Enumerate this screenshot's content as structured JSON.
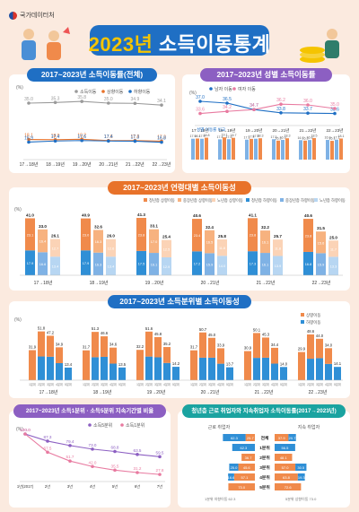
{
  "header": {
    "agency": "국가데이터처",
    "title_year": "2023년",
    "title_main": " 소득이동통계"
  },
  "chart_data": [
    {
      "type": "line",
      "title": "2017~2023년 소득이동률(전체)",
      "ylabel": "(%)",
      "categories": [
        "17→18년",
        "18→19년",
        "19→20년",
        "20→21년",
        "21→22년",
        "22→23년"
      ],
      "series": [
        {
          "name": "소득이동",
          "values": [
            35.0,
            35.3,
            35.8,
            35.0,
            34.9,
            34.1
          ]
        },
        {
          "name": "상향이동",
          "values": [
            18.1,
            18.0,
            18.2,
            17.6,
            17.6,
            17.3
          ]
        },
        {
          "name": "하향이동",
          "values": [
            16.9,
            17.4,
            17.6,
            17.4,
            17.3,
            16.8
          ]
        }
      ]
    },
    {
      "type": "line",
      "title": "2017~2023년 성별 소득이동률",
      "ylabel": "(%)",
      "categories": [
        "17→18년",
        "18→19년",
        "19→20년",
        "20→21년",
        "21→22년",
        "22→23년"
      ],
      "series": [
        {
          "name": "남자 이동",
          "values": [
            37.0,
            36.5,
            34.7,
            33.8,
            33.7,
            33.6
          ]
        },
        {
          "name": "여자 이동",
          "values": [
            33.6,
            34.2,
            34.7,
            36.2,
            36.0,
            35.0
          ]
        }
      ],
      "bars": {
        "annotation": "성별 이동률 비교",
        "male": [
          [
            17.9,
            18.1
          ],
          [
            17.4,
            19.1
          ],
          [
            17.1,
            17.8
          ],
          [
            17.5,
            16.3
          ],
          [
            16.7,
            16.3
          ],
          [
            16.9,
            16.1
          ]
        ],
        "female": [
          [
            17.9,
            18.8
          ],
          [
            17.5,
            18.7
          ],
          [
            17.9,
            18.3
          ],
          [
            16.9,
            18.3
          ],
          [
            16.8,
            18.5
          ],
          [
            17.1,
            18.1
          ]
        ]
      }
    },
    {
      "type": "bar",
      "title": "2017~2023년 연령대별 소득이동성",
      "ylabel": "(%)",
      "legend": [
        "청년층 상향이동",
        "중장년층 상향이동",
        "노년층 상향이동",
        "청년층 하향이동",
        "중장년층 하향이동",
        "노년층 하향이동"
      ],
      "categories": [
        "17→18년",
        "18→19년",
        "19→20년",
        "20→21년",
        "21→22년",
        "22→23년"
      ],
      "totals": [
        [
          41.0,
          33.0,
          26.1
        ],
        [
          40.9,
          32.6,
          26.0
        ],
        [
          41.3,
          33.1,
          25.4
        ],
        [
          40.6,
          32.4,
          25.8
        ],
        [
          41.1,
          32.2,
          25.7
        ],
        [
          40.6,
          31.5,
          25.0
        ]
      ],
      "up": [
        [
          23.1,
          16.4,
          12.7
        ],
        [
          23.0,
          16.3,
          12.6
        ],
        [
          23.8,
          17.0,
          12.5
        ],
        [
          23.4,
          16.5,
          11.8
        ],
        [
          23.8,
          16.1,
          11.8
        ],
        [
          23.8,
          15.6,
          11.7
        ]
      ],
      "down": [
        [
          17.9,
          16.6,
          13.4
        ],
        [
          17.9,
          16.3,
          13.4
        ],
        [
          17.5,
          16.1,
          12.9
        ],
        [
          17.2,
          15.9,
          14.0
        ],
        [
          17.3,
          16.1,
          13.9
        ],
        [
          16.8,
          15.9,
          13.3
        ]
      ]
    },
    {
      "type": "bar",
      "title": "2017~2023년 소득분위별 소득이동성",
      "ylabel": "(%)",
      "legend": [
        "상향이동",
        "하향이동"
      ],
      "categories": [
        "17→18년",
        "18→19년",
        "19→20년",
        "20→21년",
        "21→22년",
        "22→23년"
      ],
      "quintiles": [
        "1분위",
        "2분위",
        "3분위",
        "4분위",
        "5분위"
      ],
      "totals": [
        [
          31.9,
          51.8,
          47.2,
          34.9,
          13.4
        ],
        [
          31.7,
          51.3,
          46.6,
          34.6,
          13.5
        ],
        [
          32.2,
          51.6,
          45.8,
          35.2,
          14.2
        ],
        [
          31.7,
          50.7,
          45.0,
          33.9,
          13.7
        ],
        [
          30.9,
          50.1,
          45.3,
          34.4,
          14.0
        ],
        [
          29.9,
          48.6,
          44.0,
          34.0,
          14.1
        ]
      ],
      "up": [
        [
          31.9,
          26.6,
          22.3,
          16.8,
          0
        ],
        [
          31.7,
          26.9,
          21.8,
          17.0,
          0
        ],
        [
          32.2,
          26.5,
          21.5,
          16.9,
          0
        ],
        [
          31.7,
          26.8,
          21.1,
          16.4,
          0
        ],
        [
          30.9,
          26.4,
          21.4,
          16.8,
          0
        ],
        [
          29.9,
          25.8,
          20.6,
          16.7,
          0
        ]
      ],
      "down": [
        [
          0,
          25.2,
          24.9,
          18.1,
          13.4
        ],
        [
          0,
          24.4,
          24.8,
          17.6,
          13.5
        ],
        [
          0,
          25.1,
          24.3,
          18.3,
          14.2
        ],
        [
          0,
          23.9,
          23.9,
          17.5,
          13.7
        ],
        [
          0,
          23.7,
          23.9,
          17.6,
          14.0
        ],
        [
          0,
          22.8,
          23.4,
          17.3,
          14.1
        ]
      ]
    },
    {
      "type": "line",
      "title": "2017~2023년 소득1분위 · 소득5분위 지속기간별 비율",
      "ylabel": "(%)",
      "categories": [
        "1년(2017)",
        "2년",
        "3년",
        "4년",
        "5년",
        "6년",
        "7년"
      ],
      "series": [
        {
          "name": "소득5분위",
          "values": [
            100.0,
            87.3,
            79.4,
            73.0,
            68.8,
            63.5,
            59.5
          ]
        },
        {
          "name": "소득1분위",
          "values": [
            100.0,
            67.5,
            51.7,
            42.0,
            35.5,
            31.2,
            27.8
          ]
        }
      ]
    },
    {
      "type": "bar",
      "title": "청년층 근로 취업자와 지속취업자 소득이동률(2017→2023년)",
      "ylabel": "(%)",
      "groups": [
        "근로 취업자",
        "지속 취업자"
      ],
      "rows": [
        "전체",
        "1분위",
        "2분위",
        "3분위",
        "4분위",
        "5분위"
      ],
      "left_up": [
        25.7,
        0,
        36.7,
        45.6,
        57.1,
        73.0
      ],
      "left_down": [
        62.3,
        62.3,
        0,
        25.0,
        16.6,
        0
      ],
      "right_up": [
        37.9,
        0,
        48.1,
        57.0,
        63.8,
        72.6
      ],
      "right_down": [
        20.7,
        56.5,
        0,
        30.5,
        19.3,
        0
      ],
      "notes": [
        "1분위 하향이동 62.3",
        "5분위 상향이동 73.0"
      ]
    }
  ]
}
